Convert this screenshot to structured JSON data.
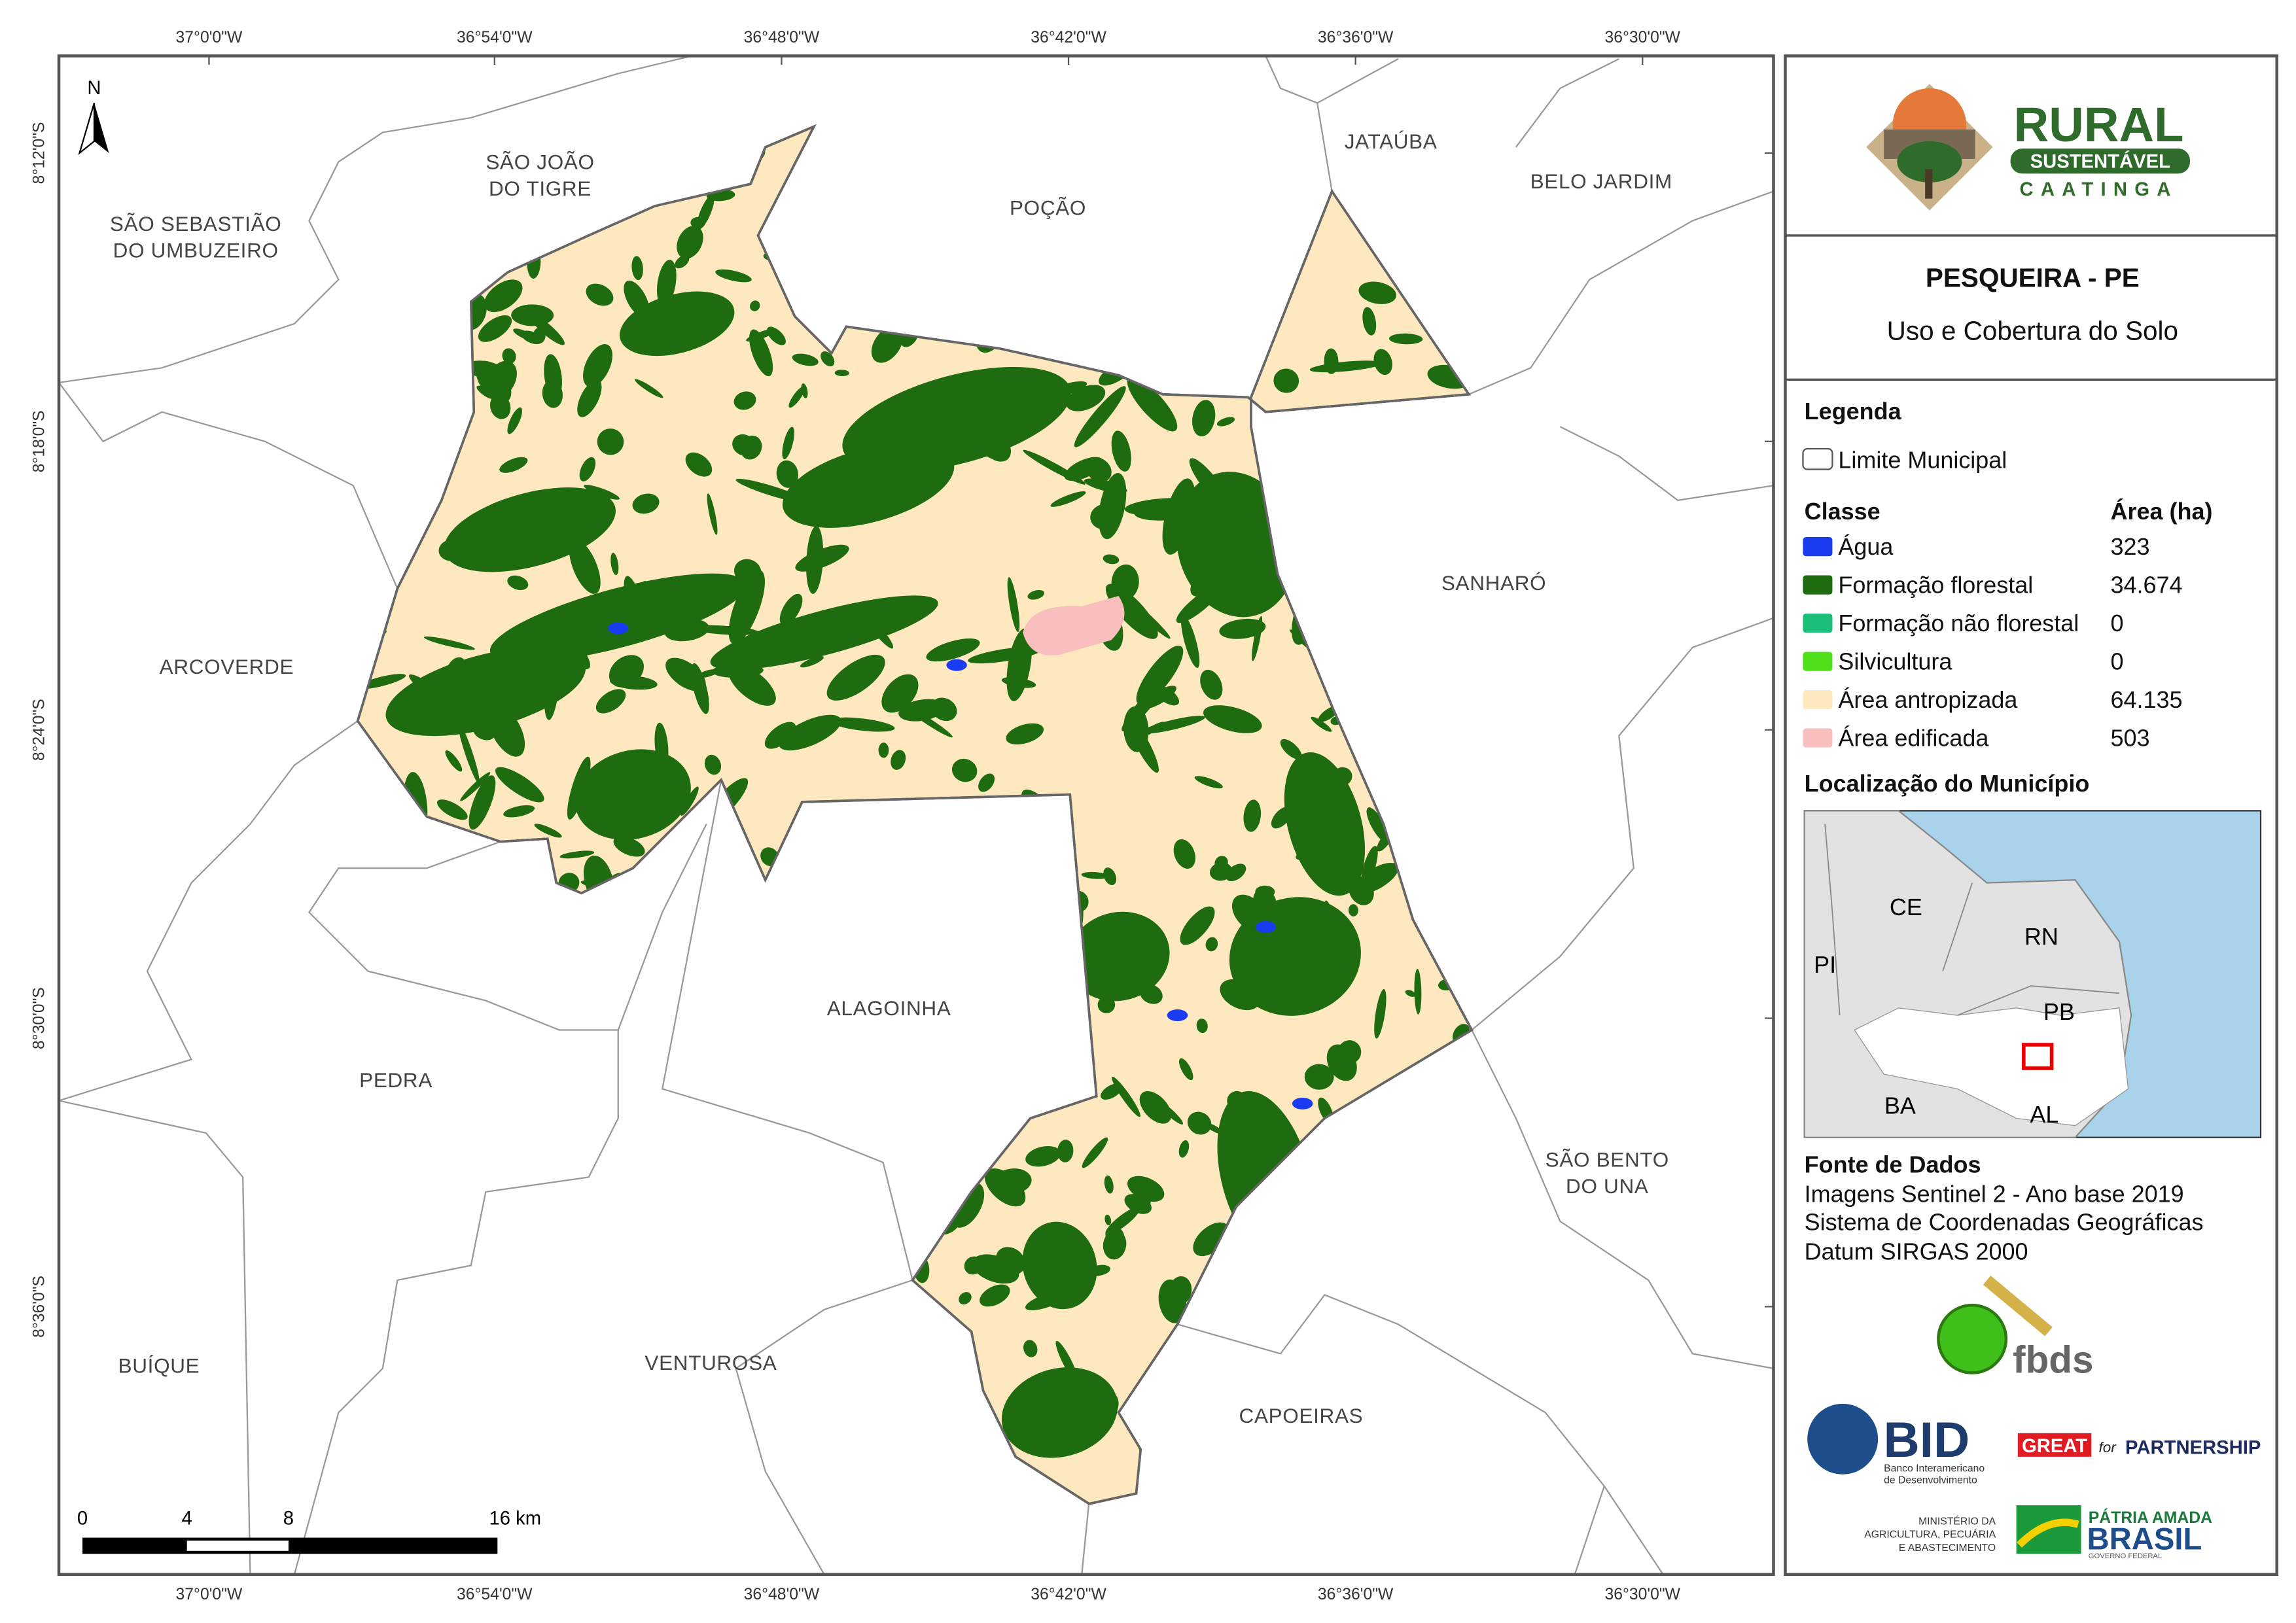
{
  "map": {
    "x_labels": [
      "37°0'0\"W",
      "36°54'0\"W",
      "36°48'0\"W",
      "36°42'0\"W",
      "36°36'0\"W",
      "36°30'0\"W"
    ],
    "y_labels": [
      "8°12'0\"S",
      "8°18'0\"S",
      "8°24'0\"S",
      "8°30'0\"S",
      "8°36'0\"S"
    ],
    "north": "N",
    "scale_labels": [
      "0",
      "4",
      "8",
      "16 km"
    ],
    "municipalities": [
      {
        "lines": [
          "SÃO SEBASTIÃO",
          "DO UMBUZEIRO"
        ]
      },
      {
        "lines": [
          "SÃO JOÃO",
          "DO TIGRE"
        ]
      },
      {
        "lines": [
          "POÇÃO"
        ]
      },
      {
        "lines": [
          "JATAÚBA"
        ]
      },
      {
        "lines": [
          "BELO JARDIM"
        ]
      },
      {
        "lines": [
          "ARCOVERDE"
        ]
      },
      {
        "lines": [
          "SANHARÓ"
        ]
      },
      {
        "lines": [
          "ALAGOINHA"
        ]
      },
      {
        "lines": [
          "PEDRA"
        ]
      },
      {
        "lines": [
          "SÃO BENTO",
          "DO UNA"
        ]
      },
      {
        "lines": [
          "BUÍQUE"
        ]
      },
      {
        "lines": [
          "VENTUROSA"
        ]
      },
      {
        "lines": [
          "CAPOEIRAS"
        ]
      }
    ]
  },
  "panel": {
    "logo": {
      "title": "RURAL",
      "badge": "SUSTENTÁVEL",
      "sub": "CAATINGA"
    },
    "title": "PESQUEIRA - PE",
    "subtitle": "Uso e Cobertura do Solo",
    "legend": {
      "title": "Legenda",
      "boundary": "Limite Municipal",
      "class_header": "Classe",
      "area_header": "Área (ha)",
      "classes": [
        {
          "name": "Água",
          "color": "#1a3cf0",
          "area": "323"
        },
        {
          "name": "Formação florestal",
          "color": "#1f6b0f",
          "area": "34.674"
        },
        {
          "name": "Formação não florestal",
          "color": "#1bbf7a",
          "area": "0"
        },
        {
          "name": "Silvicultura",
          "color": "#4fe01a",
          "area": "0"
        },
        {
          "name": "Área antropizada",
          "color": "#fde8c0",
          "area": "64.135"
        },
        {
          "name": "Área edificada",
          "color": "#f9bfbf",
          "area": "503"
        }
      ]
    },
    "location": {
      "title": "Localização do Município",
      "states": [
        "CE",
        "RN",
        "PI",
        "PB",
        "BA",
        "AL"
      ]
    },
    "sources": {
      "title": "Fonte de Dados",
      "lines": [
        "Imagens Sentinel 2 - Ano base 2019",
        "Sistema de Coordenadas Geográficas",
        "Datum SIRGAS 2000"
      ]
    },
    "partners": {
      "fbds": "fbds",
      "bid": "BID",
      "bid_name": [
        "Banco Interamericano",
        "de Desenvolvimento"
      ],
      "great": "GREAT",
      "for": "for",
      "partnership": "PARTNERSHIP",
      "ministry": [
        "MINISTÉRIO DA",
        "AGRICULTURA, PECUÁRIA",
        "E ABASTECIMENTO"
      ],
      "patria": "PÁTRIA AMADA",
      "brasil": "BRASIL",
      "gov": "GOVERNO FEDERAL"
    }
  }
}
